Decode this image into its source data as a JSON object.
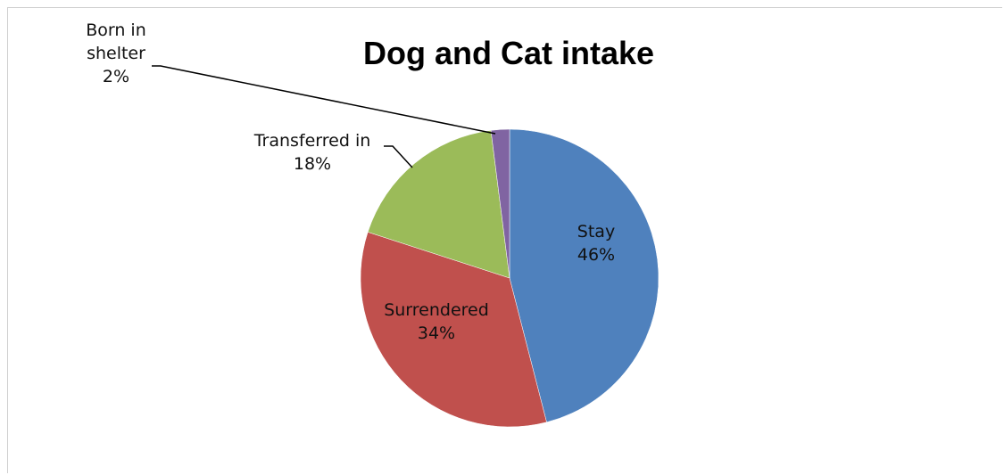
{
  "chart_data": {
    "type": "pie",
    "title": "Dog and Cat intake",
    "slices": [
      {
        "label": "Stay",
        "value": 46,
        "value_label": "46%",
        "color": "#4f81bd",
        "label_position": "inside"
      },
      {
        "label": "Surrendered",
        "value": 34,
        "value_label": "34%",
        "color": "#c0504d",
        "label_position": "inside"
      },
      {
        "label": "Transferred in",
        "value": 18,
        "value_label": "18%",
        "color": "#9bbb59",
        "label_position": "outside"
      },
      {
        "label": "Born in shelter",
        "value": 2,
        "value_label": "2%",
        "color": "#8064a2",
        "label_position": "outside"
      }
    ],
    "outside_label_lines": {
      "Transferred in": [
        "Transferred in",
        "18%"
      ],
      "Born in shelter": [
        "Born in",
        "shelter",
        "2%"
      ]
    },
    "start_angle": "12 o'clock",
    "direction": "clockwise",
    "legend": "none"
  }
}
